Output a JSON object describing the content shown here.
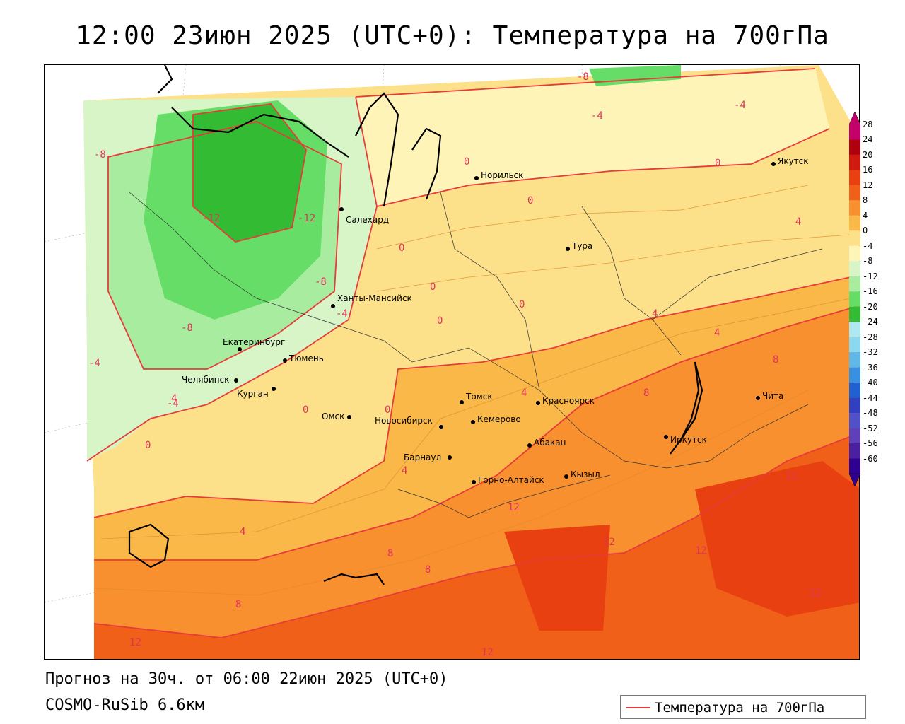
{
  "title": "12:00 23июн 2025 (UTC+0): Температура на 700гПа",
  "footer": {
    "forecast": "Прогноз на 30ч. от 06:00 22июн 2025 (UTC+0)",
    "model": "COSMO-RuSib 6.6км"
  },
  "legend": {
    "label": "Температура на 700гПа",
    "line_color": "#e83a3a"
  },
  "colorbar": {
    "ticks": [
      "28",
      "24",
      "20",
      "16",
      "12",
      "8",
      "4",
      "0",
      "-4",
      "-8",
      "-12",
      "-16",
      "-20",
      "-24",
      "-28",
      "-32",
      "-36",
      "-40",
      "-44",
      "-48",
      "-52",
      "-56",
      "-60"
    ],
    "colors": [
      "#c4006a",
      "#b00010",
      "#d01a10",
      "#e84010",
      "#f06018",
      "#f89030",
      "#fab848",
      "#fde08a",
      "#fff4b8",
      "#d8f5c8",
      "#a8eca0",
      "#66dd66",
      "#33bb33",
      "#aee8f0",
      "#8cd8f0",
      "#60b8e8",
      "#3890e0",
      "#2060d0",
      "#3040c0",
      "#5050c8",
      "#6040b8",
      "#4a20a0",
      "#300090"
    ]
  },
  "cities": [
    {
      "name": "Норильск"
    },
    {
      "name": "Якутск"
    },
    {
      "name": "Салехард"
    },
    {
      "name": "Тура"
    },
    {
      "name": "Ханты-Мансийск"
    },
    {
      "name": "Екатеринбург"
    },
    {
      "name": "Тюмень"
    },
    {
      "name": "Челябинск"
    },
    {
      "name": "Курган"
    },
    {
      "name": "Омск"
    },
    {
      "name": "Новосибирск"
    },
    {
      "name": "Томск"
    },
    {
      "name": "Кемерово"
    },
    {
      "name": "Красноярск"
    },
    {
      "name": "Барнаул"
    },
    {
      "name": "Абакан"
    },
    {
      "name": "Горно-Алтайск"
    },
    {
      "name": "Кызыл"
    },
    {
      "name": "Иркутск"
    },
    {
      "name": "Чита"
    }
  ],
  "contour_labels": [
    "-8",
    "-12",
    "-12",
    "-8",
    "-8",
    "-4",
    "-4",
    "-4",
    "-4",
    "0",
    "0",
    "0",
    "0",
    "0",
    "0",
    "0",
    "0",
    "0",
    "0",
    "4",
    "4",
    "4",
    "4",
    "4",
    "4",
    "4",
    "8",
    "8",
    "8",
    "8",
    "8",
    "12",
    "12",
    "12",
    "12",
    "12",
    "12",
    "12",
    "-8",
    "-4"
  ]
}
